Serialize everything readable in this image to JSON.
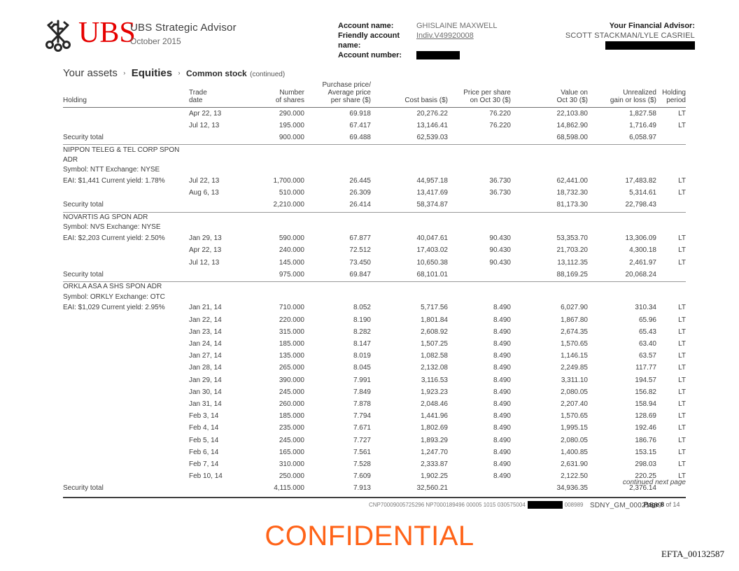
{
  "brand": {
    "logo_text": "UBS",
    "product": "UBS Strategic Advisor",
    "date": "October 2015"
  },
  "account": {
    "name_label": "Account name:",
    "name_value": "GHISLAINE MAXWELL",
    "friendly_label": "Friendly account name:",
    "friendly_value": "Indiv.V49920008",
    "number_label": "Account number:"
  },
  "advisor": {
    "label": "Your Financial Advisor:",
    "value": "SCOTT STACKMAN/LYLE CASRIEL"
  },
  "breadcrumb": {
    "part1": "Your assets",
    "sep": "›",
    "part2": "Equities",
    "part3": "Common stock",
    "suffix": "(continued)"
  },
  "table": {
    "columns": [
      "Holding",
      "Trade\ndate",
      "Number\nof shares",
      "Purchase price/\nAverage price\nper share ($)",
      "Cost basis ($)",
      "Price per share\non Oct 30 ($)",
      "Value on\nOct 30 ($)",
      "Unrealized\ngain or loss ($)",
      "Holding\nperiod"
    ],
    "sections": [
      {
        "name_lines": [],
        "rows": [
          [
            "",
            "Apr 22, 13",
            "290.000",
            "69.918",
            "20,276.22",
            "76.220",
            "22,103.80",
            "1,827.58",
            "LT"
          ],
          [
            "",
            "Jul 12, 13",
            "195.000",
            "67.417",
            "13,146.41",
            "76.220",
            "14,862.90",
            "1,716.49",
            "LT"
          ]
        ],
        "total": [
          "Security total",
          "",
          "900.000",
          "69.488",
          "62,539.03",
          "",
          "68,598.00",
          "6,058.97",
          ""
        ]
      },
      {
        "name_lines": [
          "NIPPON TELEG & TEL CORP SPON",
          "ADR",
          "Symbol: NTT  Exchange: NYSE"
        ],
        "rows": [
          [
            "EAI: $1,441 Current yield: 1.78%",
            "Jul 22, 13",
            "1,700.000",
            "26.445",
            "44,957.18",
            "36.730",
            "62,441.00",
            "17,483.82",
            "LT"
          ],
          [
            "",
            "Aug 6, 13",
            "510.000",
            "26.309",
            "13,417.69",
            "36.730",
            "18,732.30",
            "5,314.61",
            "LT"
          ]
        ],
        "total": [
          "Security total",
          "",
          "2,210.000",
          "26.414",
          "58,374.87",
          "",
          "81,173.30",
          "22,798.43",
          ""
        ]
      },
      {
        "name_lines": [
          "NOVARTIS AG SPON ADR",
          "Symbol: NVS  Exchange: NYSE"
        ],
        "rows": [
          [
            "EAI: $2,203 Current yield: 2.50%",
            "Jan 29, 13",
            "590.000",
            "67.877",
            "40,047.61",
            "90.430",
            "53,353.70",
            "13,306.09",
            "LT"
          ],
          [
            "",
            "Apr 22, 13",
            "240.000",
            "72.512",
            "17,403.02",
            "90.430",
            "21,703.20",
            "4,300.18",
            "LT"
          ],
          [
            "",
            "Jul 12, 13",
            "145.000",
            "73.450",
            "10,650.38",
            "90.430",
            "13,112.35",
            "2,461.97",
            "LT"
          ]
        ],
        "total": [
          "Security total",
          "",
          "975.000",
          "69.847",
          "68,101.01",
          "",
          "88,169.25",
          "20,068.24",
          ""
        ]
      },
      {
        "name_lines": [
          "ORKLA ASA A SHS SPON ADR",
          "Symbol: ORKLY  Exchange: OTC"
        ],
        "rows": [
          [
            "EAI: $1,029 Current yield: 2.95%",
            "Jan 21, 14",
            "710.000",
            "8.052",
            "5,717.56",
            "8.490",
            "6,027.90",
            "310.34",
            "LT"
          ],
          [
            "",
            "Jan 22, 14",
            "220.000",
            "8.190",
            "1,801.84",
            "8.490",
            "1,867.80",
            "65.96",
            "LT"
          ],
          [
            "",
            "Jan 23, 14",
            "315.000",
            "8.282",
            "2,608.92",
            "8.490",
            "2,674.35",
            "65.43",
            "LT"
          ],
          [
            "",
            "Jan 24, 14",
            "185.000",
            "8.147",
            "1,507.25",
            "8.490",
            "1,570.65",
            "63.40",
            "LT"
          ],
          [
            "",
            "Jan 27, 14",
            "135.000",
            "8.019",
            "1,082.58",
            "8.490",
            "1,146.15",
            "63.57",
            "LT"
          ],
          [
            "",
            "Jan 28, 14",
            "265.000",
            "8.045",
            "2,132.08",
            "8.490",
            "2,249.85",
            "117.77",
            "LT"
          ],
          [
            "",
            "Jan 29, 14",
            "390.000",
            "7.991",
            "3,116.53",
            "8.490",
            "3,311.10",
            "194.57",
            "LT"
          ],
          [
            "",
            "Jan 30, 14",
            "245.000",
            "7.849",
            "1,923.23",
            "8.490",
            "2,080.05",
            "156.82",
            "LT"
          ],
          [
            "",
            "Jan 31, 14",
            "260.000",
            "7.878",
            "2,048.46",
            "8.490",
            "2,207.40",
            "158.94",
            "LT"
          ],
          [
            "",
            "Feb 3, 14",
            "185.000",
            "7.794",
            "1,441.96",
            "8.490",
            "1,570.65",
            "128.69",
            "LT"
          ],
          [
            "",
            "Feb 4, 14",
            "235.000",
            "7.671",
            "1,802.69",
            "8.490",
            "1,995.15",
            "192.46",
            "LT"
          ],
          [
            "",
            "Feb 5, 14",
            "245.000",
            "7.727",
            "1,893.29",
            "8.490",
            "2,080.05",
            "186.76",
            "LT"
          ],
          [
            "",
            "Feb 6, 14",
            "165.000",
            "7.561",
            "1,247.70",
            "8.490",
            "1,400.85",
            "153.15",
            "LT"
          ],
          [
            "",
            "Feb 7, 14",
            "310.000",
            "7.528",
            "2,333.87",
            "8.490",
            "2,631.90",
            "298.03",
            "LT"
          ],
          [
            "",
            "Feb 10, 14",
            "250.000",
            "7.609",
            "1,902.25",
            "8.490",
            "2,122.50",
            "220.25",
            "LT"
          ]
        ],
        "total": [
          "Security total",
          "",
          "4,115.000",
          "7.913",
          "32,560.21",
          "",
          "34,936.35",
          "2,376.14",
          ""
        ]
      }
    ],
    "continued_note": "continued next page"
  },
  "footer": {
    "code_left": "CNP70009005725296 NP7000189496 00005 1015 030575004",
    "code_right": "008989",
    "bates_sdny": "SDNY_GM_00021569",
    "page_label": "Page 8",
    "page_of": " of 14",
    "confidential": "CONFIDENTIAL",
    "bates_efta": "EFTA_00132587"
  },
  "colors": {
    "logo_red": "#e60100",
    "confidential_orange": "#ff6318",
    "redaction_black": "#000000"
  }
}
